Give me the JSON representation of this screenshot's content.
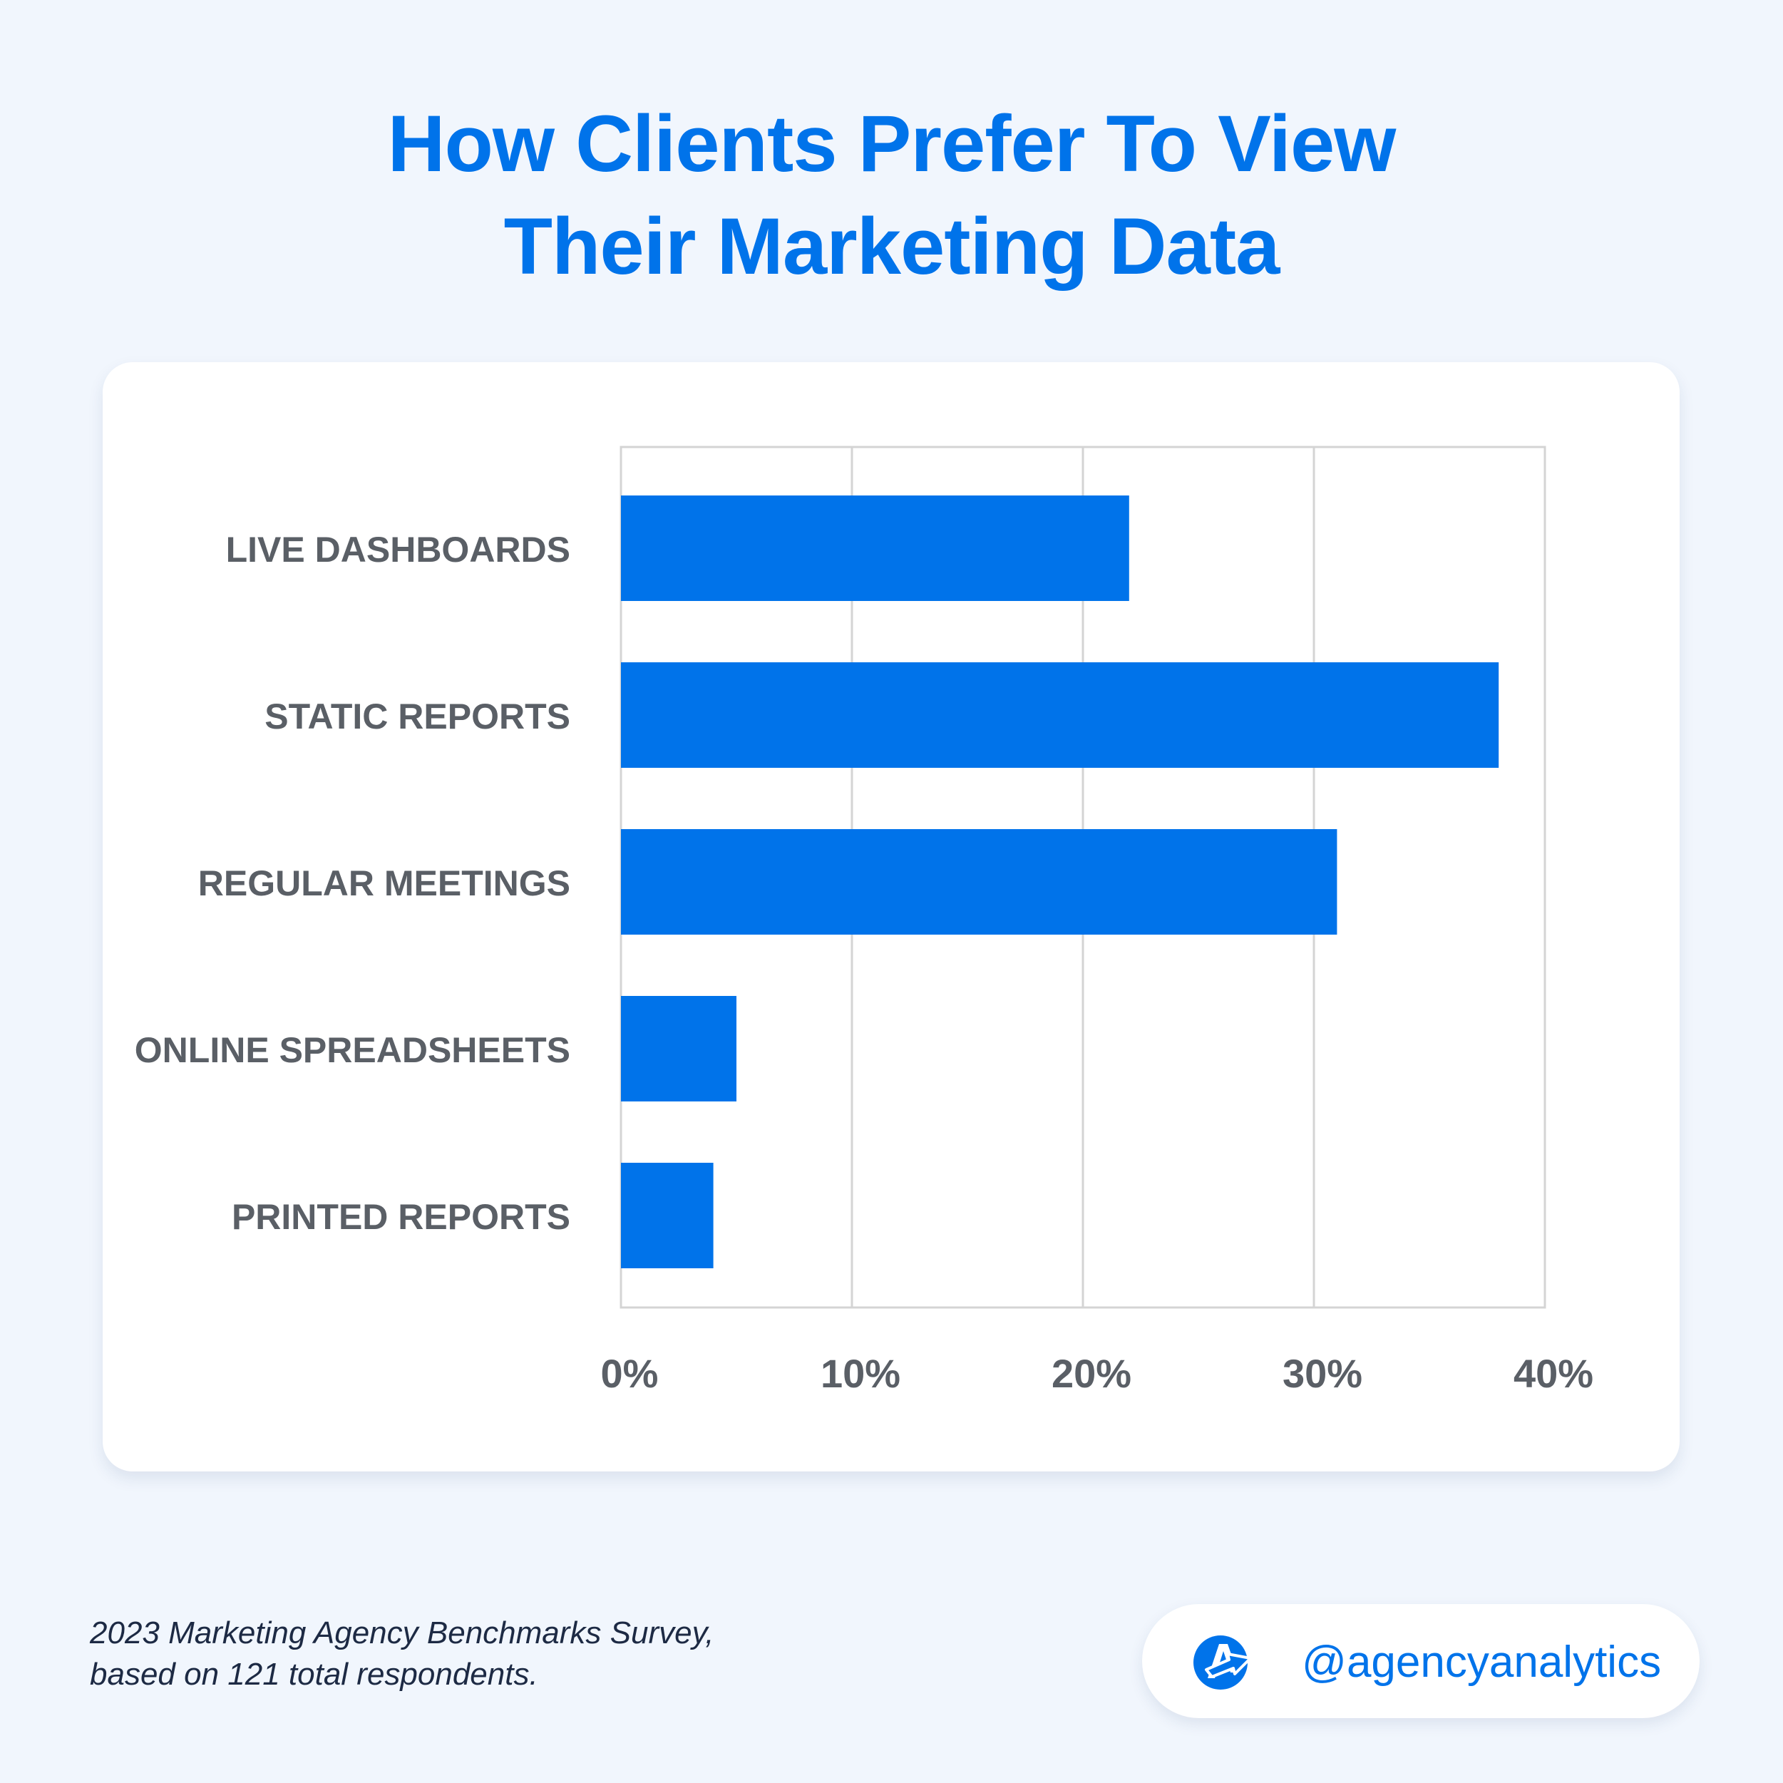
{
  "title": {
    "line1": "How Clients Prefer To View",
    "line2": "Their Marketing Data"
  },
  "chart_data": {
    "type": "bar",
    "orientation": "horizontal",
    "categories": [
      "LIVE DASHBOARDS",
      "STATIC REPORTS",
      "REGULAR MEETINGS",
      "ONLINE SPREADSHEETS",
      "PRINTED REPORTS"
    ],
    "values": [
      22,
      38,
      31,
      5,
      4
    ],
    "xlim": [
      0,
      40
    ],
    "xticks": [
      "0%",
      "10%",
      "20%",
      "30%",
      "40%"
    ],
    "grid": true,
    "colors": {
      "bar": "#0073ea",
      "grid": "#d4d4d4",
      "label": "#5a5f66"
    }
  },
  "footnote": {
    "line1": "2023 Marketing Agency Benchmarks Survey,",
    "line2": "based on 121 total respondents."
  },
  "badge": {
    "icon": "agencyanalytics-logo-icon",
    "handle": "@agencyanalytics"
  },
  "colors": {
    "background": "#f1f6fd",
    "accent": "#0073ea",
    "card": "#ffffff"
  }
}
